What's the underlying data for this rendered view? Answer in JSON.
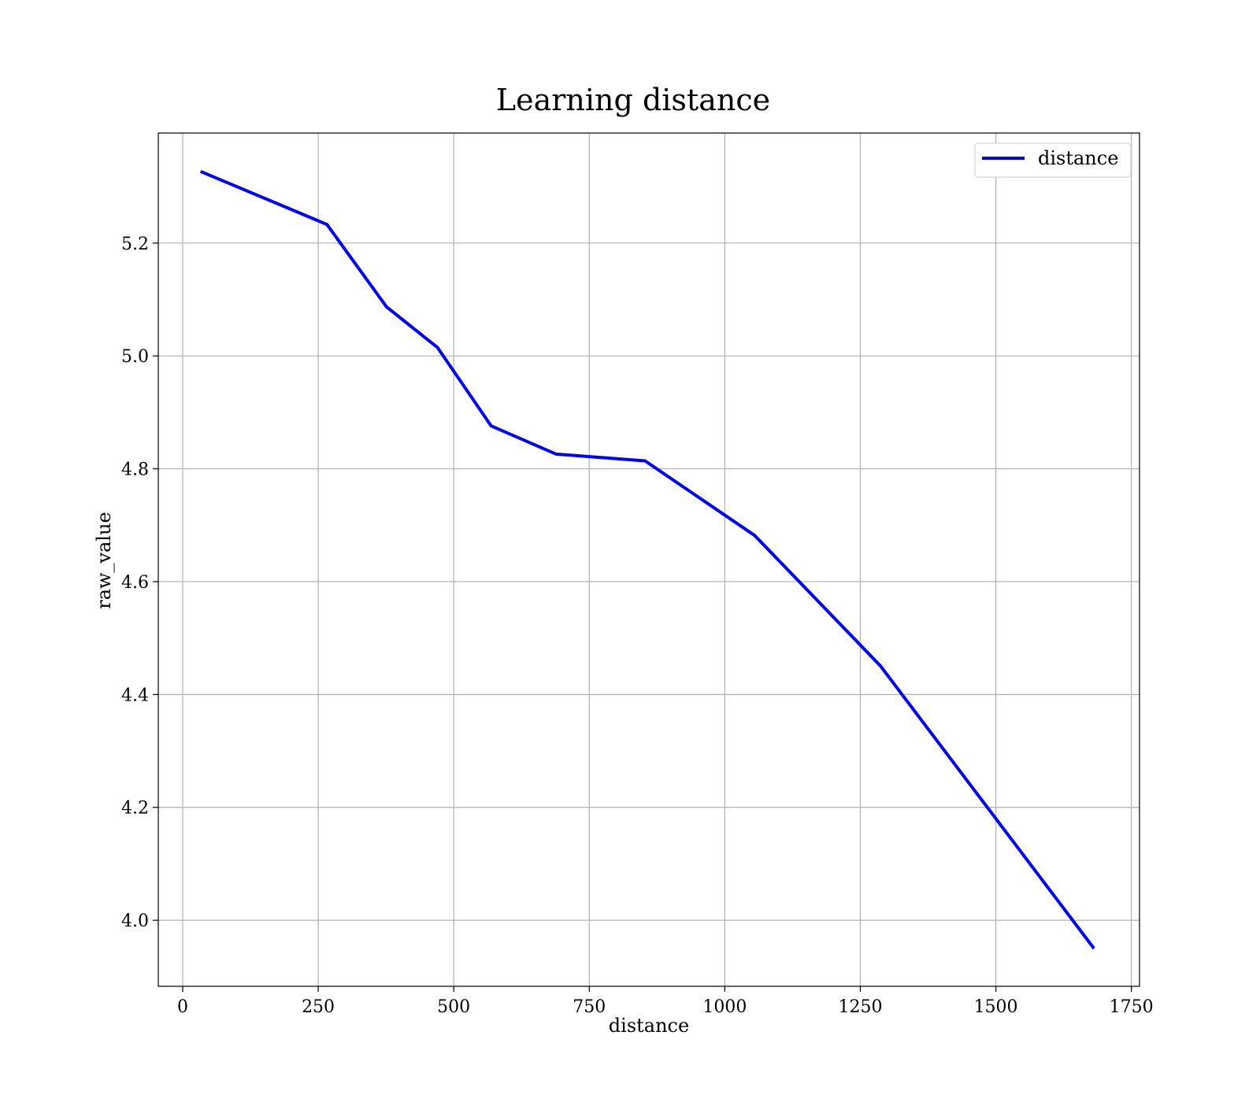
{
  "chart_data": {
    "type": "line",
    "title": "Learning distance",
    "xlabel": "distance",
    "ylabel": "raw_value",
    "xlim": [
      -45,
      1765
    ],
    "ylim": [
      3.883,
      5.395
    ],
    "xticks": [
      0,
      250,
      500,
      750,
      1000,
      1250,
      1500,
      1750
    ],
    "xtick_labels": [
      "0",
      "250",
      "500",
      "750",
      "1000",
      "1250",
      "1500",
      "1750"
    ],
    "yticks": [
      4.0,
      4.2,
      4.4,
      4.6,
      4.8,
      5.0,
      5.2
    ],
    "ytick_labels": [
      "4.0",
      "4.2",
      "4.4",
      "4.6",
      "4.8",
      "5.0",
      "5.2"
    ],
    "grid": true,
    "legend_position": "top-right",
    "series": [
      {
        "name": "distance",
        "color": "#0000ff",
        "x": [
          33,
          266,
          376,
          470,
          569,
          689,
          853,
          1055,
          1287,
          1681
        ],
        "y": [
          5.327,
          5.233,
          5.087,
          5.015,
          4.876,
          4.826,
          4.814,
          4.682,
          4.451,
          3.95
        ]
      }
    ]
  }
}
